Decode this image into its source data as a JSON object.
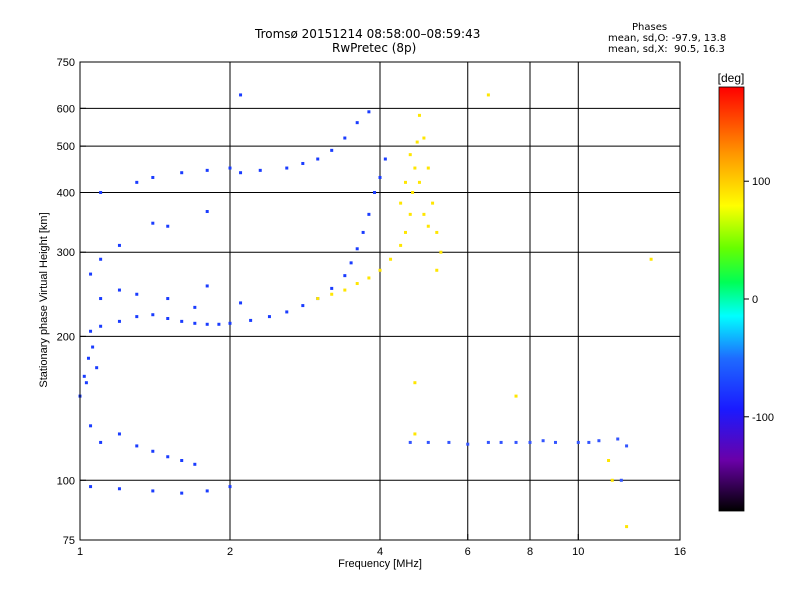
{
  "header": {
    "title_line1": "Tromsø 20151214 08:58:00–08:59:43",
    "title_line2": "RwPretec (8p)",
    "phases_label": "Phases",
    "phases_o": "mean, sd,O: -97.9, 13.8",
    "phases_x": "mean, sd,X:  90.5, 16.3"
  },
  "chart_data": {
    "type": "scatter",
    "title": "Tromsø 20151214 08:58:00–08:59:43",
    "subtitle": "RwPretec (8p)",
    "xlabel": "Frequency [MHz]",
    "ylabel": "Stationary phase Virtual Height [km]",
    "xscale": "log",
    "yscale": "log",
    "xlim": [
      1,
      16
    ],
    "ylim": [
      75,
      750
    ],
    "xticks": [
      1,
      2,
      4,
      6,
      8,
      10,
      16
    ],
    "yticks": [
      75,
      100,
      200,
      300,
      400,
      500,
      600,
      750
    ],
    "x_gridlines": [
      2,
      4,
      6,
      8,
      10
    ],
    "y_gridlines": [
      100,
      200,
      300,
      400,
      500,
      600
    ],
    "grid": true,
    "colorbar": {
      "label": "[deg]",
      "range": [
        -180,
        180
      ],
      "ticks": [
        100,
        0,
        -100
      ]
    },
    "series": [
      {
        "role": "O",
        "color": "#1a3cff",
        "points": [
          [
            1.0,
            150
          ],
          [
            1.02,
            165
          ],
          [
            1.04,
            180
          ],
          [
            1.06,
            190
          ],
          [
            1.08,
            172
          ],
          [
            1.03,
            160
          ],
          [
            1.05,
            205
          ],
          [
            1.1,
            210
          ],
          [
            1.2,
            215
          ],
          [
            1.3,
            220
          ],
          [
            1.4,
            222
          ],
          [
            1.5,
            218
          ],
          [
            1.6,
            215
          ],
          [
            1.7,
            213
          ],
          [
            1.8,
            212
          ],
          [
            1.9,
            212
          ],
          [
            2.0,
            213
          ],
          [
            2.2,
            216
          ],
          [
            2.4,
            220
          ],
          [
            2.6,
            225
          ],
          [
            2.8,
            232
          ],
          [
            3.0,
            240
          ],
          [
            3.2,
            252
          ],
          [
            3.4,
            268
          ],
          [
            3.5,
            285
          ],
          [
            3.6,
            305
          ],
          [
            3.7,
            330
          ],
          [
            3.8,
            360
          ],
          [
            3.9,
            400
          ],
          [
            4.0,
            430
          ],
          [
            4.1,
            470
          ],
          [
            1.1,
            240
          ],
          [
            1.2,
            250
          ],
          [
            1.3,
            245
          ],
          [
            1.5,
            240
          ],
          [
            1.7,
            230
          ],
          [
            1.8,
            255
          ],
          [
            2.1,
            235
          ],
          [
            1.05,
            270
          ],
          [
            1.1,
            290
          ],
          [
            1.2,
            310
          ],
          [
            1.4,
            345
          ],
          [
            1.5,
            340
          ],
          [
            1.8,
            365
          ],
          [
            1.3,
            420
          ],
          [
            1.4,
            430
          ],
          [
            1.6,
            440
          ],
          [
            1.8,
            445
          ],
          [
            2.0,
            450
          ],
          [
            2.1,
            440
          ],
          [
            2.3,
            445
          ],
          [
            2.6,
            450
          ],
          [
            2.8,
            460
          ],
          [
            3.0,
            470
          ],
          [
            3.2,
            490
          ],
          [
            3.4,
            520
          ],
          [
            3.6,
            560
          ],
          [
            3.8,
            590
          ],
          [
            1.05,
            130
          ],
          [
            1.1,
            120
          ],
          [
            1.2,
            125
          ],
          [
            1.3,
            118
          ],
          [
            1.4,
            115
          ],
          [
            1.5,
            112
          ],
          [
            1.6,
            110
          ],
          [
            1.7,
            108
          ],
          [
            1.05,
            97
          ],
          [
            1.2,
            96
          ],
          [
            1.4,
            95
          ],
          [
            1.6,
            94
          ],
          [
            1.8,
            95
          ],
          [
            2.0,
            97
          ],
          [
            2.1,
            640
          ],
          [
            1.1,
            400
          ]
        ]
      },
      {
        "role": "X",
        "color": "#ffe600",
        "points": [
          [
            3.0,
            240
          ],
          [
            3.2,
            245
          ],
          [
            3.4,
            250
          ],
          [
            3.6,
            258
          ],
          [
            3.8,
            265
          ],
          [
            4.0,
            275
          ],
          [
            4.2,
            290
          ],
          [
            4.4,
            310
          ],
          [
            4.5,
            330
          ],
          [
            4.6,
            360
          ],
          [
            4.65,
            400
          ],
          [
            4.7,
            450
          ],
          [
            4.75,
            510
          ],
          [
            4.8,
            580
          ],
          [
            4.9,
            520
          ],
          [
            5.0,
            450
          ],
          [
            5.1,
            380
          ],
          [
            5.2,
            330
          ],
          [
            5.3,
            300
          ],
          [
            5.2,
            275
          ],
          [
            4.4,
            380
          ],
          [
            4.5,
            420
          ],
          [
            4.6,
            480
          ],
          [
            4.8,
            420
          ],
          [
            4.9,
            360
          ],
          [
            5.0,
            340
          ],
          [
            6.6,
            640
          ],
          [
            4.7,
            160
          ],
          [
            4.7,
            125
          ],
          [
            7.5,
            150
          ],
          [
            11.5,
            110
          ],
          [
            11.7,
            100
          ],
          [
            12.5,
            80
          ],
          [
            14.0,
            290
          ]
        ]
      },
      {
        "role": "mixed",
        "color": "#3355ff",
        "points": [
          [
            4.6,
            120
          ],
          [
            5.0,
            120
          ],
          [
            5.5,
            120
          ],
          [
            6.0,
            119
          ],
          [
            6.6,
            120
          ],
          [
            7.0,
            120
          ],
          [
            7.5,
            120
          ],
          [
            8.0,
            120
          ],
          [
            8.5,
            121
          ],
          [
            9.0,
            120
          ],
          [
            10.0,
            120
          ],
          [
            10.5,
            120
          ],
          [
            11.0,
            121
          ],
          [
            12.0,
            122
          ],
          [
            12.2,
            100
          ],
          [
            12.5,
            118
          ]
        ]
      }
    ]
  }
}
